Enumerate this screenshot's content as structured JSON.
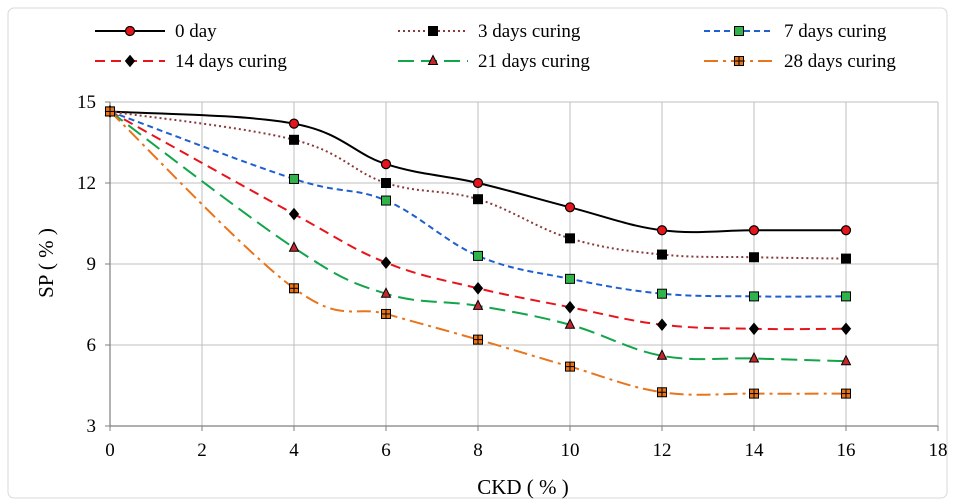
{
  "chart_data": {
    "type": "line",
    "title": "",
    "xlabel": "CKD ( % )",
    "ylabel": "SP ( % )",
    "xlim": [
      0,
      18
    ],
    "ylim": [
      3,
      15
    ],
    "xticks": [
      0,
      2,
      4,
      6,
      8,
      10,
      12,
      14,
      16,
      18
    ],
    "yticks": [
      3,
      6,
      9,
      12,
      15
    ],
    "grid": true,
    "legend_position": "top",
    "x": [
      0,
      4,
      6,
      8,
      10,
      12,
      14,
      16
    ],
    "series": [
      {
        "name": "0 day",
        "color": "#000000",
        "dash": "solid",
        "marker": "circle",
        "marker_fill": "#e8141b",
        "values": [
          14.65,
          14.2,
          12.7,
          12.0,
          11.1,
          10.25,
          10.25,
          10.25
        ]
      },
      {
        "name": "3 days curing",
        "color": "#8b3a3a",
        "dash": "dotted",
        "marker": "square",
        "marker_fill": "#000000",
        "values": [
          14.65,
          13.6,
          12.0,
          11.4,
          9.95,
          9.35,
          9.25,
          9.2
        ]
      },
      {
        "name": "7 days curing",
        "color": "#1f5fd0",
        "dash": "dashed-short",
        "marker": "square",
        "marker_fill": "#2fb34a",
        "values": [
          14.65,
          12.15,
          11.35,
          9.3,
          8.45,
          7.9,
          7.8,
          7.8
        ]
      },
      {
        "name": "14 days curing",
        "color": "#e8141b",
        "dash": "dashed",
        "marker": "diamond",
        "marker_fill": "#000000",
        "values": [
          14.65,
          10.85,
          9.05,
          8.1,
          7.4,
          6.75,
          6.6,
          6.6
        ]
      },
      {
        "name": "21 days curing",
        "color": "#12a54a",
        "dash": "dashed-long",
        "marker": "triangle",
        "marker_fill": "#c0282d",
        "values": [
          14.65,
          9.6,
          7.9,
          7.45,
          6.75,
          5.6,
          5.5,
          5.4
        ]
      },
      {
        "name": "28 days curing",
        "color": "#e8741b",
        "dash": "dash-dot",
        "marker": "square-plus",
        "marker_fill": "#e8741b",
        "values": [
          14.65,
          8.1,
          7.15,
          6.2,
          5.2,
          4.25,
          4.2,
          4.2
        ]
      }
    ]
  }
}
